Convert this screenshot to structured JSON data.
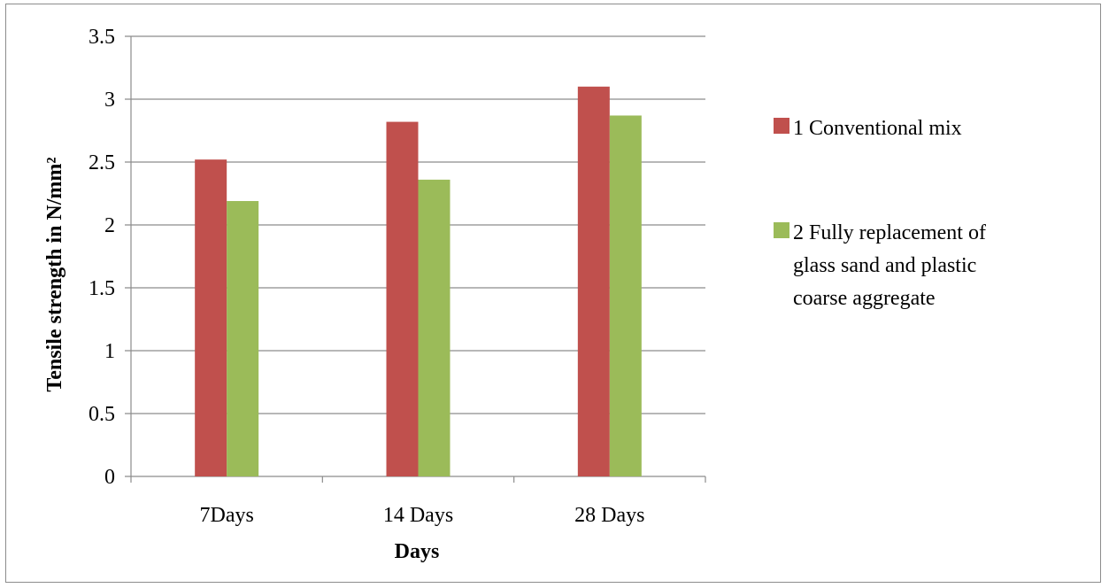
{
  "chart_data": {
    "type": "bar",
    "title": "",
    "xlabel": "Days",
    "ylabel": "Tensile strength in N/mm²",
    "categories": [
      "7Days",
      "14 Days",
      "28 Days"
    ],
    "series": [
      {
        "name": "1 Conventional mix",
        "values": [
          2.52,
          2.82,
          3.1
        ],
        "color": "#c0504d"
      },
      {
        "name": "2 Fully replacement of glass sand and plastic coarse aggregate",
        "values": [
          2.19,
          2.36,
          2.87
        ],
        "color": "#9bbb59"
      }
    ],
    "ylim": [
      0,
      3.5
    ],
    "yticks": [
      "0",
      "0.5",
      "1",
      "1.5",
      "2",
      "2.5",
      "3",
      "3.5"
    ],
    "grid": true,
    "legend_position": "right"
  },
  "legend": {
    "items": [
      {
        "lines": [
          "1 Conventional mix"
        ]
      },
      {
        "lines": [
          "2 Fully replacement of",
          "glass sand and plastic",
          "coarse aggregate"
        ]
      }
    ]
  }
}
